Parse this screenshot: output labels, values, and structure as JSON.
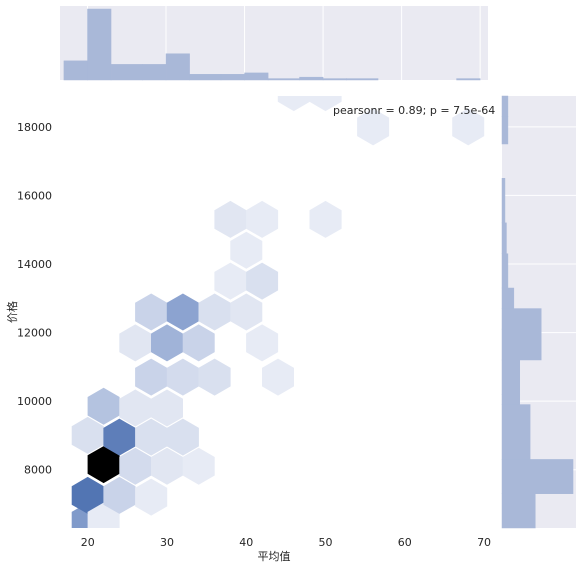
{
  "chart_data": {
    "type": "hexbin",
    "xlabel": "平均值",
    "ylabel": "价格",
    "xlim": [
      16.5,
      71
    ],
    "ylim": [
      6300,
      18900
    ],
    "x_ticks": [
      20,
      30,
      40,
      50,
      60,
      70
    ],
    "y_ticks": [
      8000,
      10000,
      12000,
      14000,
      16000,
      18000
    ],
    "annotation": "pearsonr = 0.89; p = 7.5e-64",
    "colors": {
      "grid_bg": "#eaeaf2",
      "hist": "#a9b8d8",
      "hex_dark": "#000000",
      "hex_mid": "#4b6fb0",
      "hex_light": "#f1f3f9"
    },
    "hexbins": [
      {
        "x": 20.0,
        "y": 6500,
        "intensity": 0.55
      },
      {
        "x": 20.0,
        "y": 7250,
        "intensity": 0.75
      },
      {
        "x": 22.0,
        "y": 6500,
        "intensity": 0.05
      },
      {
        "x": 22.0,
        "y": 8150,
        "intensity": 1.0
      },
      {
        "x": 20.0,
        "y": 9000,
        "intensity": 0.12
      },
      {
        "x": 24.0,
        "y": 7250,
        "intensity": 0.2
      },
      {
        "x": 24.0,
        "y": 8950,
        "intensity": 0.7
      },
      {
        "x": 22.0,
        "y": 9850,
        "intensity": 0.3
      },
      {
        "x": 26.0,
        "y": 8100,
        "intensity": 0.15
      },
      {
        "x": 28.0,
        "y": 7200,
        "intensity": 0.05
      },
      {
        "x": 26.0,
        "y": 9800,
        "intensity": 0.08
      },
      {
        "x": 28.0,
        "y": 8950,
        "intensity": 0.12
      },
      {
        "x": 30.0,
        "y": 8100,
        "intensity": 0.08
      },
      {
        "x": 28.0,
        "y": 10700,
        "intensity": 0.2
      },
      {
        "x": 30.0,
        "y": 9800,
        "intensity": 0.08
      },
      {
        "x": 32.0,
        "y": 8950,
        "intensity": 0.12
      },
      {
        "x": 34.0,
        "y": 8100,
        "intensity": 0.05
      },
      {
        "x": 26.0,
        "y": 11700,
        "intensity": 0.08
      },
      {
        "x": 28.0,
        "y": 12600,
        "intensity": 0.2
      },
      {
        "x": 30.0,
        "y": 11700,
        "intensity": 0.4
      },
      {
        "x": 32.0,
        "y": 10700,
        "intensity": 0.15
      },
      {
        "x": 34.0,
        "y": 11700,
        "intensity": 0.2
      },
      {
        "x": 36.0,
        "y": 10700,
        "intensity": 0.12
      },
      {
        "x": 32.0,
        "y": 12600,
        "intensity": 0.5
      },
      {
        "x": 36.0,
        "y": 12600,
        "intensity": 0.12
      },
      {
        "x": 40.0,
        "y": 12600,
        "intensity": 0.08
      },
      {
        "x": 38.0,
        "y": 13500,
        "intensity": 0.05
      },
      {
        "x": 42.0,
        "y": 11700,
        "intensity": 0.05
      },
      {
        "x": 42.0,
        "y": 13500,
        "intensity": 0.12
      },
      {
        "x": 44.0,
        "y": 10700,
        "intensity": 0.05
      },
      {
        "x": 38.0,
        "y": 15300,
        "intensity": 0.08
      },
      {
        "x": 42.0,
        "y": 15300,
        "intensity": 0.05
      },
      {
        "x": 40.0,
        "y": 14400,
        "intensity": 0.05
      },
      {
        "x": 50.0,
        "y": 15300,
        "intensity": 0.05
      },
      {
        "x": 46.0,
        "y": 19000,
        "intensity": 0.05
      },
      {
        "x": 50.0,
        "y": 19000,
        "intensity": 0.05
      },
      {
        "x": 56.0,
        "y": 18000,
        "intensity": 0.05
      },
      {
        "x": 68.0,
        "y": 18000,
        "intensity": 0.05
      }
    ],
    "top_histogram": {
      "bin_edges": [
        17,
        20,
        23,
        27,
        30,
        33,
        37,
        40,
        43,
        47,
        50,
        53,
        57,
        60,
        63,
        67,
        70
      ],
      "heights": [
        0.27,
        1.0,
        0.22,
        0.22,
        0.37,
        0.08,
        0.08,
        0.1,
        0.02,
        0.04,
        0.02,
        0.02,
        0.0,
        0.0,
        0.0,
        0.02
      ]
    },
    "right_histogram": {
      "bin_edges": [
        6300,
        7300,
        8300,
        9900,
        10200,
        11200,
        12100,
        12700,
        13300,
        14300,
        15200,
        16500,
        17500,
        18300,
        19200
      ],
      "heights": [
        0.45,
        0.96,
        0.38,
        0.24,
        0.24,
        0.53,
        0.53,
        0.16,
        0.08,
        0.06,
        0.04,
        0.0,
        0.08,
        0.08
      ]
    }
  }
}
